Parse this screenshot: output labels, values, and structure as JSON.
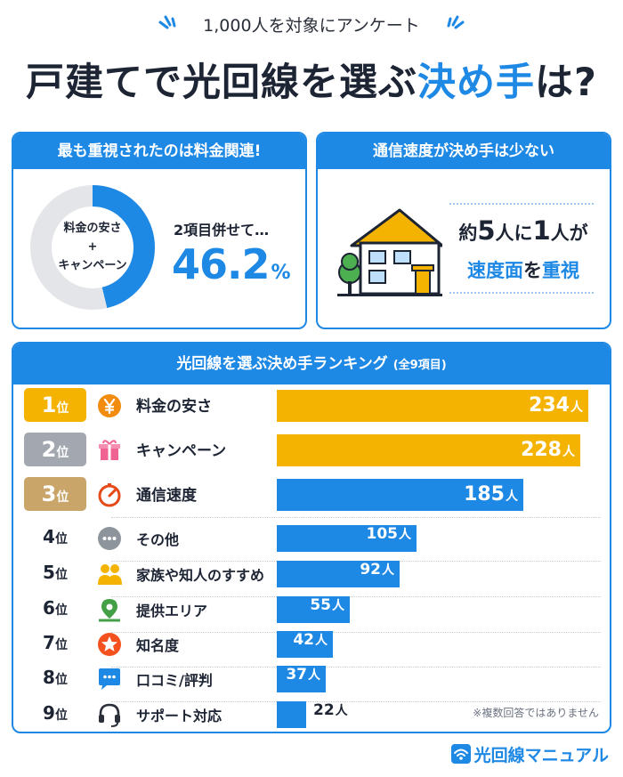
{
  "header": {
    "survey": "1,000人を対象にアンケート",
    "title_part1": "戸建てで光回線を選ぶ",
    "title_highlight": "決め手",
    "title_part2": "は?"
  },
  "card1": {
    "heading": "最も重視されたのは料金関連!",
    "donut_line1": "料金の安さ",
    "donut_plus": "+",
    "donut_line2": "キャンペーン",
    "combo_text": "2項目併せて…",
    "percent": "46.2",
    "percent_unit": "%",
    "percent_value": 46.2
  },
  "card2": {
    "heading": "通信速度が決め手は少ない",
    "fact_a": "約",
    "fact_b": "5",
    "fact_c": "人に",
    "fact_d": "1",
    "fact_e": "人が",
    "fact_f": "速度面",
    "fact_g": "を",
    "fact_h": "重視"
  },
  "ranking": {
    "heading": "光回線を選ぶ決め手ランキング",
    "heading_note": "(全9項目)",
    "unit": "人",
    "rank_suffix": "位",
    "note": "※複数回答ではありません",
    "max_value": 234,
    "items": [
      {
        "rank": "1",
        "label": "料金の安さ",
        "value": 234,
        "icon": "yen-icon",
        "color": "#f5b301"
      },
      {
        "rank": "2",
        "label": "キャンペーン",
        "value": 228,
        "icon": "gift-icon",
        "color": "#f5b301"
      },
      {
        "rank": "3",
        "label": "通信速度",
        "value": 185,
        "icon": "speedometer-icon",
        "color": "#1e88e5"
      },
      {
        "rank": "4",
        "label": "その他",
        "value": 105,
        "icon": "more-icon",
        "color": "#1e88e5"
      },
      {
        "rank": "5",
        "label": "家族や知人のすすめ",
        "value": 92,
        "icon": "people-icon",
        "color": "#1e88e5"
      },
      {
        "rank": "6",
        "label": "提供エリア",
        "value": 55,
        "icon": "map-pin-icon",
        "color": "#1e88e5"
      },
      {
        "rank": "7",
        "label": "知名度",
        "value": 42,
        "icon": "star-icon",
        "color": "#1e88e5"
      },
      {
        "rank": "8",
        "label": "口コミ/評判",
        "value": 37,
        "icon": "chat-icon",
        "color": "#1e88e5"
      },
      {
        "rank": "9",
        "label": "サポート対応",
        "value": 22,
        "icon": "headset-icon",
        "color": "#1e88e5"
      }
    ],
    "badge_colors": [
      "#f5b301",
      "#a3a8b0",
      "#c9a56a"
    ]
  },
  "logo": "光回線マニュアル"
}
